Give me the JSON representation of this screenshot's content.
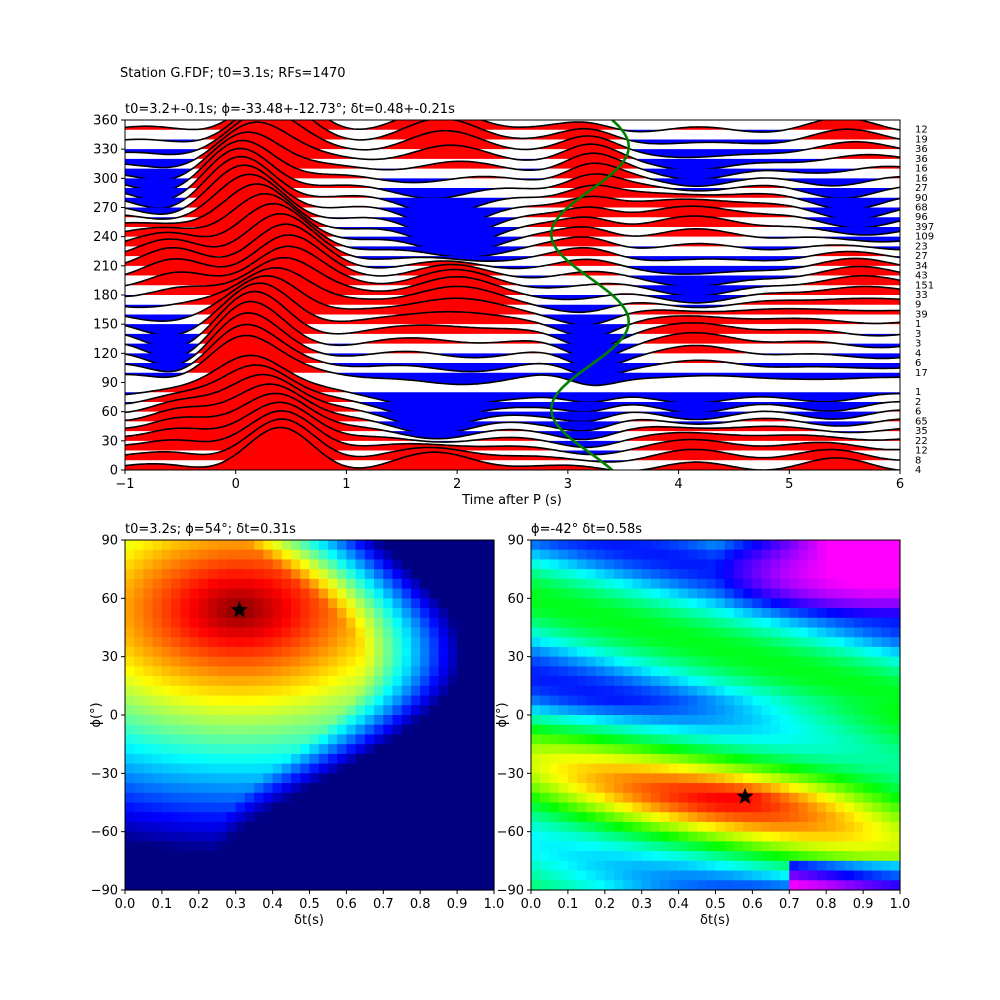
{
  "figure": {
    "suptitle": "Station G.FDF; t0=3.1s; RFs=1470"
  },
  "chart_data": [
    {
      "type": "line",
      "panel": "receiver-function-traces",
      "title": "t0=3.2+-0.1s; ϕ=-33.48+-12.73°; δt=0.48+-0.21s",
      "xlabel": "Time after P (s)",
      "ylabel": "",
      "xlim": [
        -1,
        6
      ],
      "ylim": [
        0,
        360
      ],
      "xticks": [
        "−1",
        "0",
        "1",
        "2",
        "3",
        "4",
        "5",
        "6"
      ],
      "yticks": [
        "0",
        "30",
        "60",
        "90",
        "120",
        "150",
        "180",
        "210",
        "240",
        "270",
        "300",
        "330",
        "360"
      ],
      "grid": false,
      "fill_positive_color": "#ff0000",
      "fill_negative_color": "#0000ff",
      "trace_color": "#000000",
      "t0_curve_color": "#008000",
      "t0_curve": {
        "center": 3.2,
        "amplitude": 0.35,
        "period_deg": 180,
        "phase_deg": 145
      },
      "backazimuth_bins": [
        0,
        10,
        20,
        30,
        40,
        50,
        60,
        70,
        80,
        90,
        100,
        110,
        120,
        130,
        140,
        150,
        160,
        170,
        180,
        190,
        200,
        210,
        220,
        230,
        240,
        250,
        260,
        270,
        280,
        290,
        300,
        310,
        320,
        330,
        340,
        350
      ],
      "counts": [
        "4",
        "8",
        "12",
        "22",
        "35",
        "65",
        "6",
        "2",
        "1",
        "",
        "17",
        "6",
        "4",
        "3",
        "3",
        "1",
        "39",
        "9",
        "33",
        "151",
        "43",
        "34",
        "27",
        "23",
        "109",
        "397",
        "96",
        "68",
        "90",
        "27",
        "16",
        "16",
        "36",
        "36",
        "19",
        "12"
      ]
    },
    {
      "type": "heatmap",
      "panel": "energy-grid-t0",
      "title": "t0=3.2s; ϕ=54°; δt=0.31s",
      "xlabel": "δt(s)",
      "ylabel": "ϕ(°)",
      "xlim": [
        0,
        1
      ],
      "ylim": [
        -90,
        90
      ],
      "xticks": [
        "0.0",
        "0.1",
        "0.2",
        "0.3",
        "0.4",
        "0.5",
        "0.6",
        "0.7",
        "0.8",
        "0.9",
        "1.0"
      ],
      "yticks": [
        "−90",
        "−60",
        "−30",
        "0",
        "30",
        "60",
        "90"
      ],
      "colormap": "jet",
      "best_fit": {
        "dt": 0.31,
        "phi": 54
      },
      "marker": "star"
    },
    {
      "type": "heatmap",
      "panel": "energy-grid-best",
      "title": "ϕ=-42° δt=0.58s",
      "xlabel": "δt(s)",
      "ylabel": "ϕ(°)",
      "xlim": [
        0,
        1
      ],
      "ylim": [
        -90,
        90
      ],
      "xticks": [
        "0.0",
        "0.1",
        "0.2",
        "0.3",
        "0.4",
        "0.5",
        "0.6",
        "0.7",
        "0.8",
        "0.9",
        "1.0"
      ],
      "yticks": [
        "−90",
        "−60",
        "−30",
        "0",
        "30",
        "60",
        "90"
      ],
      "colormap": "gist_rainbow",
      "best_fit": {
        "dt": 0.58,
        "phi": -42
      },
      "marker": "star"
    }
  ]
}
